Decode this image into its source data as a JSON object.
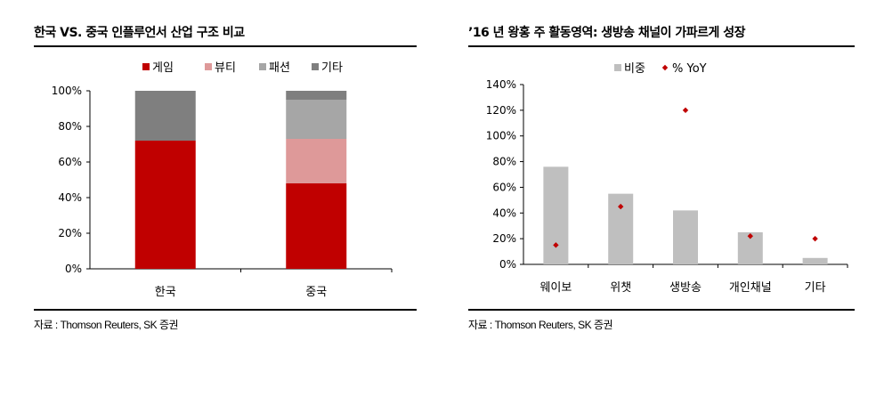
{
  "left": {
    "title": "한국 VS. 중국 인플루언서 산업 구조 비교",
    "source": "자료 : Thomson Reuters, SK 증권"
  },
  "right": {
    "title": "’16 년 왕홍 주 활동영역: 생방송 채널이 가파르게 성장",
    "source": "자료 : Thomson Reuters, SK 증권"
  },
  "chart_data": [
    {
      "type": "bar",
      "stacked": true,
      "categories": [
        "한국",
        "중국"
      ],
      "series": [
        {
          "name": "게임",
          "color": "#C00000",
          "values": [
            72,
            48
          ]
        },
        {
          "name": "뷰티",
          "color": "#DE9999",
          "values": [
            0,
            25
          ]
        },
        {
          "name": "패션",
          "color": "#A6A6A6",
          "values": [
            0,
            22
          ]
        },
        {
          "name": "기타",
          "color": "#7F7F7F",
          "values": [
            28,
            5
          ]
        }
      ],
      "yticks": [
        "0%",
        "20%",
        "40%",
        "60%",
        "80%",
        "100%"
      ],
      "ylim": [
        0,
        100
      ],
      "grid": false,
      "legend": "top"
    },
    {
      "type": "bar",
      "categories": [
        "웨이보",
        "위챗",
        "생방송",
        "개인채널",
        "기타"
      ],
      "series": [
        {
          "name": "비중",
          "kind": "bar",
          "color": "#BFBFBF",
          "values": [
            76,
            55,
            42,
            25,
            5
          ]
        },
        {
          "name": "% YoY",
          "kind": "scatter",
          "color": "#C00000",
          "values": [
            15,
            45,
            120,
            22,
            20
          ]
        }
      ],
      "yticks": [
        "0%",
        "20%",
        "40%",
        "60%",
        "80%",
        "100%",
        "120%",
        "140%"
      ],
      "ylim": [
        0,
        140
      ],
      "grid": false,
      "legend": "top"
    }
  ]
}
